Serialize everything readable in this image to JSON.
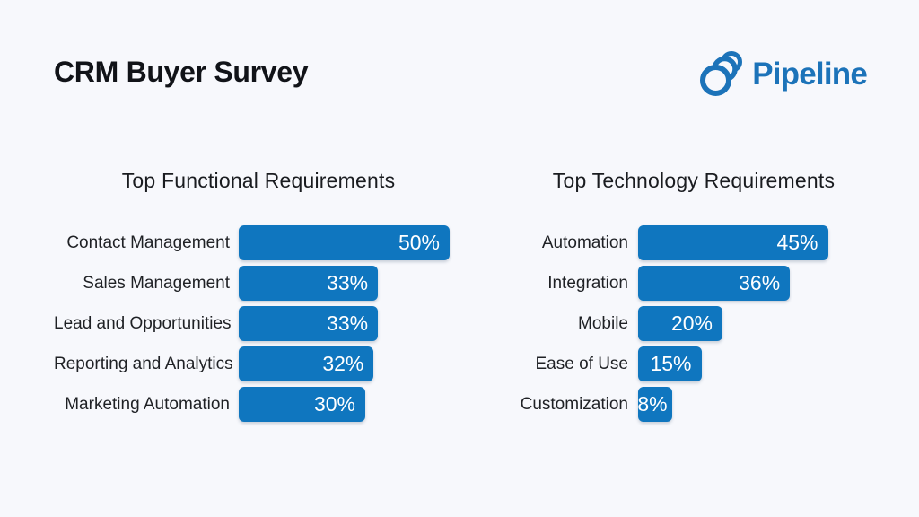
{
  "page": {
    "title": "CRM Buyer Survey",
    "background_color": "#f7f8fc"
  },
  "logo": {
    "text": "Pipeline",
    "color": "#1c73b9",
    "icon": "pipeline-rings-icon"
  },
  "chart_data": [
    {
      "type": "bar",
      "orientation": "horizontal",
      "title": "Top Functional Requirements",
      "categories": [
        "Contact Management",
        "Sales Management",
        "Lead and Opportunities",
        "Reporting and Analytics",
        "Marketing Automation"
      ],
      "values": [
        50,
        33,
        33,
        32,
        30
      ],
      "data_labels": [
        "50%",
        "33%",
        "33%",
        "32%",
        "30%"
      ],
      "bar_color": "#0f76bf",
      "xlim": [
        0,
        50
      ],
      "grid": false,
      "legend": false
    },
    {
      "type": "bar",
      "orientation": "horizontal",
      "title": "Top Technology Requirements",
      "categories": [
        "Automation",
        "Integration",
        "Mobile",
        "Ease of Use",
        "Customization"
      ],
      "values": [
        45,
        36,
        20,
        15,
        8
      ],
      "data_labels": [
        "45%",
        "36%",
        "20%",
        "15%",
        "8%"
      ],
      "bar_color": "#0f76bf",
      "xlim": [
        0,
        50
      ],
      "grid": false,
      "legend": false
    }
  ]
}
